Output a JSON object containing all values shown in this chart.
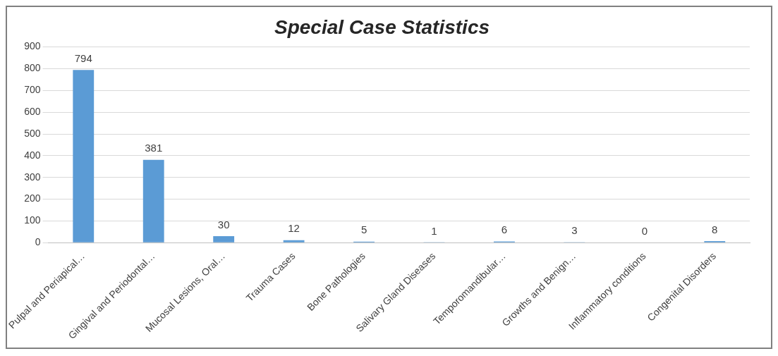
{
  "chart_data": {
    "type": "bar",
    "title": "Special Case Statistics",
    "categories": [
      "Pulpal and Periapical…",
      "Gingival and Periodontal…",
      "Mucosal Lesions, Oral…",
      "Trauma Cases",
      "Bone Pathologies",
      "Salivary Gland Diseases",
      "Temporomandibular…",
      "Growths and Benign…",
      "Inflammatory conditions",
      "Congenital Disorders"
    ],
    "values": [
      794,
      381,
      30,
      12,
      5,
      1,
      6,
      3,
      0,
      8
    ],
    "color": "#5b9bd5",
    "ylim": [
      0,
      900
    ],
    "yticks": [
      0,
      100,
      200,
      300,
      400,
      500,
      600,
      700,
      800,
      900
    ],
    "grid": "y",
    "data_labels": true,
    "legend": false
  }
}
